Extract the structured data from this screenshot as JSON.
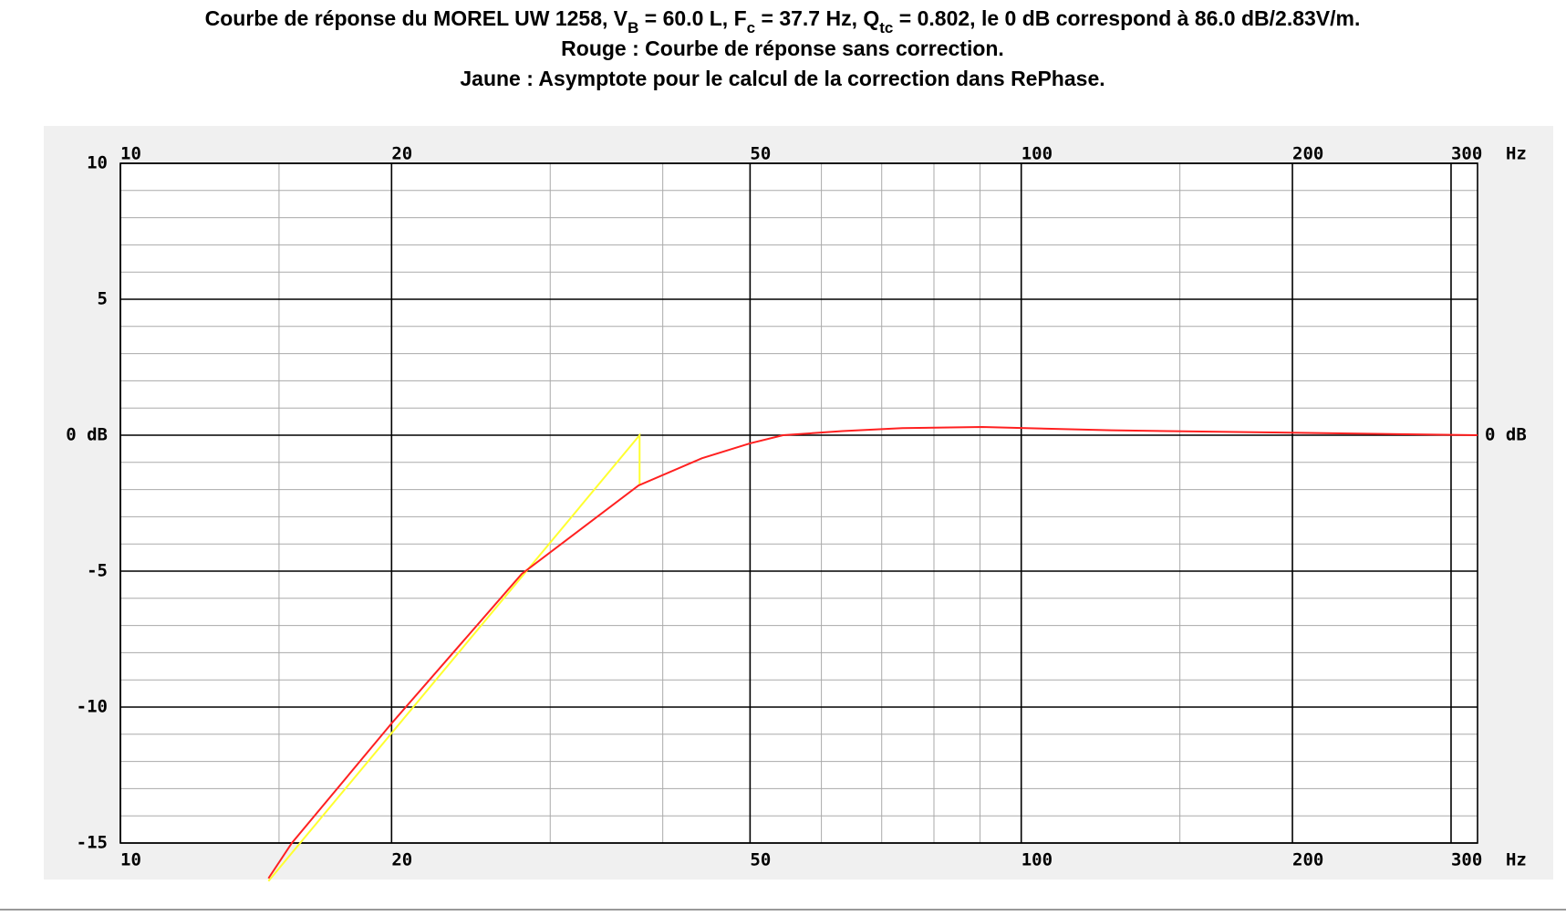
{
  "chart_data": {
    "type": "line",
    "title_parts": [
      "Courbe de réponse du MOREL UW 1258, V",
      "B",
      " = 60.0 L, F",
      "c",
      " = 37.7 Hz, Q",
      "tc",
      " = 0.802, le 0 dB correspond à 86.0 dB/2.83V/m."
    ],
    "subtitle": [
      "Rouge : Courbe de réponse sans correction.",
      "Jaune : Asymptote pour le calcul de la correction dans RePhase."
    ],
    "x_unit": "Hz",
    "log_x": true,
    "xlim": [
      10,
      321
    ],
    "ylim": [
      -15,
      10
    ],
    "xticks": [
      10,
      20,
      50,
      100,
      200,
      300
    ],
    "x_minor_ticks": [
      15,
      30,
      40,
      60,
      70,
      80,
      90,
      150
    ],
    "yticks": [
      10,
      5,
      {
        "value": 0,
        "label": "0 dB"
      },
      -5,
      -10,
      -15
    ],
    "y_minor_step": 1,
    "grid": true,
    "series": [
      {
        "name": "Rouge",
        "color": "#ff2020",
        "x": [
          14.6,
          15.5,
          20,
          27.9,
          37.6,
          44.2,
          50,
          54.4,
          63.3,
          73.8,
          90.5,
          126,
          190,
          321
        ],
        "values": [
          -16.3,
          -15,
          -10.6,
          -5.1,
          -1.85,
          -0.85,
          -0.3,
          0,
          0.15,
          0.26,
          0.3,
          0.18,
          0.1,
          0
        ]
      },
      {
        "name": "Jaune",
        "color": "#ffff30",
        "x": [
          14.6,
          37.7,
          37.7
        ],
        "values": [
          -16.4,
          0,
          -1.85
        ]
      }
    ]
  }
}
